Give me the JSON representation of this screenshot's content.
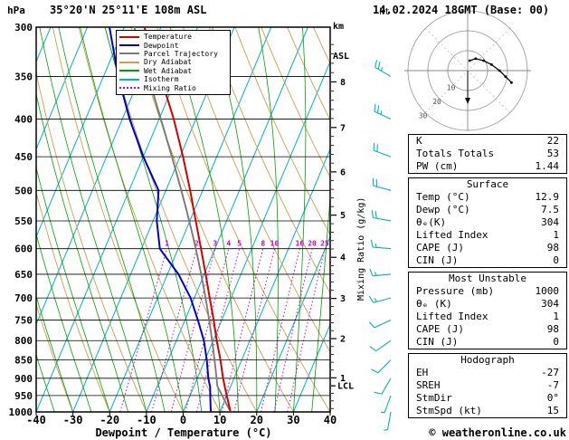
{
  "header": {
    "left_unit": "hPa",
    "title": "35°20'N 25°11'E 108m ASL",
    "km": "km",
    "asl": "ASL",
    "datetime": "14.02.2024 18GMT (Base: 00)"
  },
  "legend": {
    "items": [
      {
        "label": "Temperature",
        "color": "#d40000",
        "style": "solid"
      },
      {
        "label": "Dewpoint",
        "color": "#0000c8",
        "style": "solid"
      },
      {
        "label": "Parcel Trajectory",
        "color": "#7a7a7a",
        "style": "solid"
      },
      {
        "label": "Dry Adiabat",
        "color": "#c8a050",
        "style": "solid"
      },
      {
        "label": "Wet Adiabat",
        "color": "#00a000",
        "style": "solid"
      },
      {
        "label": "Isotherm",
        "color": "#00b4b4",
        "style": "solid"
      },
      {
        "label": "Mixing Ratio",
        "color": "#cc00cc",
        "style": "dotted"
      }
    ]
  },
  "chart_data": {
    "type": "line",
    "variant": "skew-t log-p sounding",
    "xlabel": "Dewpoint / Temperature (°C)",
    "ylabel_right": "Mixing Ratio (g/kg)",
    "x_ticks": [
      -40,
      -30,
      -20,
      -10,
      0,
      10,
      20,
      30,
      40
    ],
    "temp_range": [
      -40,
      40
    ],
    "pressure_range": [
      300,
      1000
    ],
    "pressure_ticks": [
      300,
      350,
      400,
      450,
      500,
      550,
      600,
      650,
      700,
      750,
      800,
      850,
      900,
      950,
      1000
    ],
    "km_ticks": [
      1,
      2,
      3,
      4,
      5,
      6,
      7,
      8
    ],
    "mixing_ratio_lines": [
      1,
      2,
      3,
      4,
      5,
      8,
      10,
      16,
      20,
      25
    ],
    "lcl_label": "LCL",
    "colors": {
      "isotherm": "#00b4b4",
      "dry_adiabat": "#c8a050",
      "wet_adiabat": "#00a000",
      "mixing_ratio": "#cc00cc",
      "temperature": "#d40000",
      "dewpoint": "#0000c8",
      "parcel": "#7a7a7a",
      "wind_barb": "#00b4b4",
      "grid": "#000000"
    },
    "sounding": {
      "pressure": [
        1000,
        950,
        925,
        900,
        850,
        800,
        750,
        700,
        650,
        600,
        550,
        500,
        450,
        400,
        350,
        300
      ],
      "temperature": [
        12.9,
        10.0,
        8.5,
        7.0,
        4.2,
        1.0,
        -2.2,
        -5.8,
        -9.6,
        -13.8,
        -18.4,
        -23.4,
        -29.2,
        -36.0,
        -44.5,
        -54.5
      ],
      "dewpoint": [
        7.5,
        5.5,
        4.5,
        3.0,
        0.5,
        -2.5,
        -6.5,
        -11.0,
        -17.0,
        -25.0,
        -29.0,
        -32.0,
        -40.0,
        -48.0,
        -56.0,
        -64.0
      ]
    },
    "parcel": {
      "surface_pressure": 1000,
      "surface_temp": 12.9,
      "surface_dewp": 7.5
    },
    "winds": [
      {
        "p": 350,
        "dir": 300,
        "spd": 25
      },
      {
        "p": 400,
        "dir": 295,
        "spd": 25
      },
      {
        "p": 450,
        "dir": 290,
        "spd": 20
      },
      {
        "p": 500,
        "dir": 285,
        "spd": 20
      },
      {
        "p": 550,
        "dir": 280,
        "spd": 20
      },
      {
        "p": 600,
        "dir": 275,
        "spd": 15
      },
      {
        "p": 650,
        "dir": 265,
        "spd": 15
      },
      {
        "p": 700,
        "dir": 255,
        "spd": 15
      },
      {
        "p": 750,
        "dir": 245,
        "spd": 10
      },
      {
        "p": 800,
        "dir": 235,
        "spd": 10
      },
      {
        "p": 850,
        "dir": 225,
        "spd": 10
      },
      {
        "p": 900,
        "dir": 210,
        "spd": 10
      },
      {
        "p": 950,
        "dir": 200,
        "spd": 5
      },
      {
        "p": 1000,
        "dir": 190,
        "spd": 5
      }
    ],
    "hodograph": {
      "unit": "kt",
      "rings_kt": [
        10,
        20,
        30
      ],
      "ring_labels": [
        "10",
        "20",
        "30"
      ],
      "trace_uv_kt": [
        [
          1,
          5
        ],
        [
          4,
          6
        ],
        [
          8,
          5
        ],
        [
          12,
          3
        ],
        [
          16,
          0
        ],
        [
          19,
          -3
        ],
        [
          22,
          -6
        ]
      ],
      "storm_motion": {
        "dir_deg": 0,
        "speed_kt": 15
      }
    }
  },
  "panel": {
    "tables": [
      {
        "rows": [
          [
            "K",
            "22"
          ],
          [
            "Totals Totals",
            "53"
          ],
          [
            "PW (cm)",
            "1.44"
          ]
        ]
      },
      {
        "title": "Surface",
        "rows": [
          [
            "Temp (°C)",
            "12.9"
          ],
          [
            "Dewp (°C)",
            "7.5"
          ],
          [
            "θₑ(K)",
            "304"
          ],
          [
            "Lifted Index",
            "1"
          ],
          [
            "CAPE (J)",
            "98"
          ],
          [
            "CIN (J)",
            "0"
          ]
        ]
      },
      {
        "title": "Most Unstable",
        "rows": [
          [
            "Pressure (mb)",
            "1000"
          ],
          [
            "θₑ (K)",
            "304"
          ],
          [
            "Lifted Index",
            "1"
          ],
          [
            "CAPE (J)",
            "98"
          ],
          [
            "CIN (J)",
            "0"
          ]
        ]
      },
      {
        "title": "Hodograph",
        "rows": [
          [
            "EH",
            "-27"
          ],
          [
            "SREH",
            "-7"
          ],
          [
            "StmDir",
            "0°"
          ],
          [
            "StmSpd (kt)",
            "15"
          ]
        ]
      }
    ]
  },
  "footer": {
    "copyright": "© weatheronline.co.uk"
  }
}
